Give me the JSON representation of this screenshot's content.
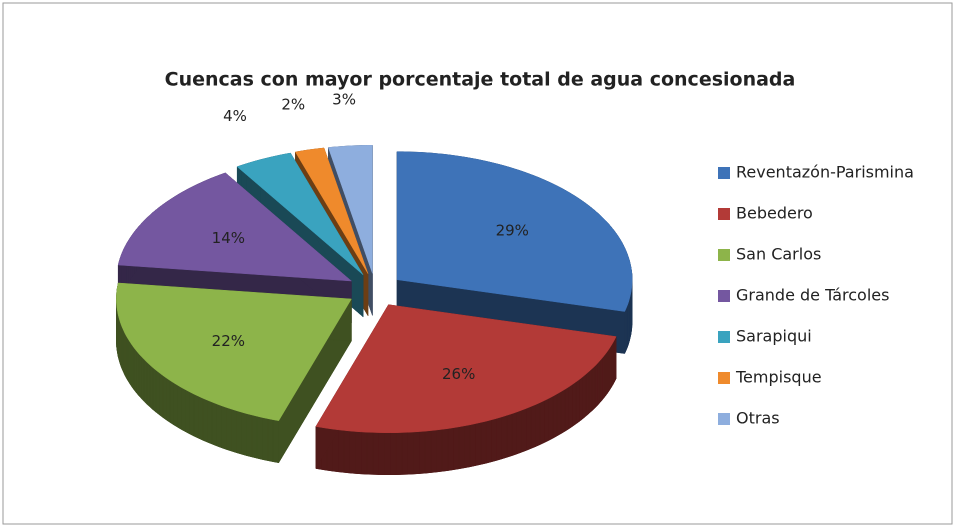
{
  "chart_data": {
    "type": "pie",
    "title": "Cuencas con mayor porcentaje total de agua concesionada",
    "categories": [
      "Reventazón-Parismina",
      "Bebedero",
      "San Carlos",
      "Grande de Tárcoles",
      "Sarapiqui",
      "Tempisque",
      "Otras"
    ],
    "values": [
      29,
      26,
      22,
      14,
      4,
      2,
      3
    ],
    "value_labels": [
      "29%",
      "26%",
      "22%",
      "14%",
      "4%",
      "2%",
      "3%"
    ],
    "colors": [
      "#3e73b8",
      "#b33a37",
      "#8db44a",
      "#7457a0",
      "#3aa3bf",
      "#ef8a2c",
      "#8eaede"
    ],
    "legend": "right"
  }
}
